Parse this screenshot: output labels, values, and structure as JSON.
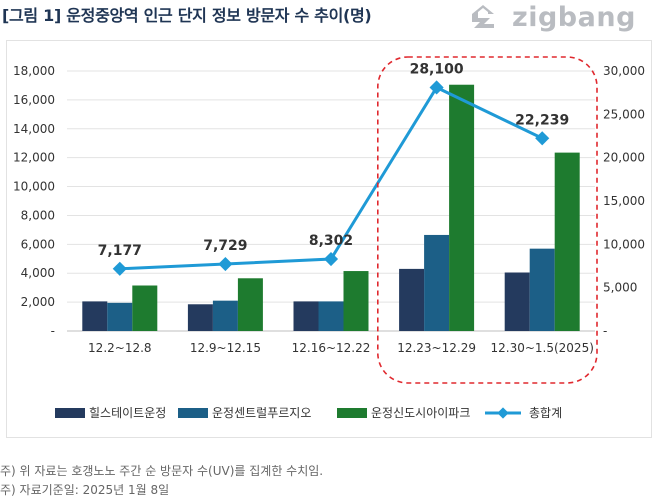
{
  "title": "[그림 1] 운정중앙역 인근 단지 정보 방문자 수 추이(명)",
  "logo": {
    "text": "zigbang",
    "icon": "zigbang-house-icon",
    "color": "#b9bcc1"
  },
  "notes": [
    "주) 위 자료는 호갱노노 주간 순 방문자 수(UV)를 집계한 수치임.",
    "주) 자료기준일: 2025년 1월 8일"
  ],
  "colors": {
    "series1": "#243a5e",
    "series2": "#1c5f87",
    "series3": "#1e7b2f",
    "total": "#1f9ad6",
    "highlight": "#e0282e",
    "grid": "#e3e3e3"
  },
  "chart_data": {
    "type": "bar+line",
    "title": "[그림 1] 운정중앙역 인근 단지 정보 방문자 수 추이(명)",
    "categories": [
      "12.2~12.8",
      "12.9~12.15",
      "12.16~12.22",
      "12.23~12.29",
      "12.30~1.5(2025)"
    ],
    "series": [
      {
        "name": "힐스테이트운정",
        "type": "bar",
        "axis": "left",
        "values": [
          2050,
          1850,
          2050,
          4300,
          4050
        ]
      },
      {
        "name": "운정센트럴푸르지오",
        "type": "bar",
        "axis": "left",
        "values": [
          1950,
          2100,
          2050,
          6650,
          5700
        ]
      },
      {
        "name": "운정신도시아이파크",
        "type": "bar",
        "axis": "left",
        "values": [
          3150,
          3650,
          4150,
          17050,
          12350
        ]
      },
      {
        "name": "총합계",
        "type": "line",
        "axis": "right",
        "values": [
          7177,
          7729,
          8302,
          28100,
          22239
        ],
        "labels": [
          "7,177",
          "7,729",
          "8,302",
          "28,100",
          "22,239"
        ]
      }
    ],
    "y_left": {
      "min": 0,
      "max": 18000,
      "ticks": [
        "-",
        "2,000",
        "4,000",
        "6,000",
        "8,000",
        "10,000",
        "12,000",
        "14,000",
        "16,000",
        "18,000"
      ]
    },
    "y_right": {
      "min": 0,
      "max": 30000,
      "ticks": [
        "-",
        "5,000",
        "10,000",
        "15,000",
        "20,000",
        "25,000",
        "30,000"
      ]
    },
    "grid": true,
    "legend": "bottom",
    "highlight_categories": [
      "12.23~12.29",
      "12.30~1.5(2025)"
    ]
  }
}
